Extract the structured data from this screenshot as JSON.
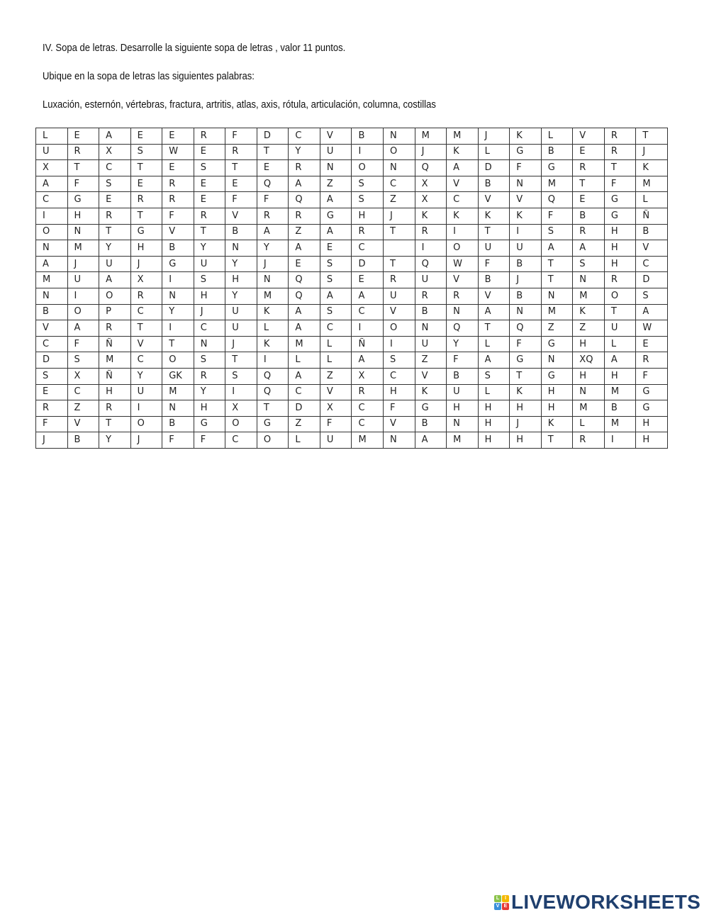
{
  "instructions": {
    "title": "IV. Sopa de letras. Desarrolle la siguiente sopa de letras , valor 11 puntos.",
    "subtitle": "Ubique en la sopa de letras las siguientes palabras:",
    "words": "Luxación, esternón, vértebras, fractura, artritis, atlas, axis, rótula, articulación,  columna, costillas"
  },
  "grid": [
    [
      "L",
      "E",
      "A",
      "E",
      "E",
      "R",
      "F",
      "D",
      "C",
      "V",
      "B",
      "N",
      "M",
      "M",
      "J",
      "K",
      "L",
      "V",
      "R",
      "T"
    ],
    [
      "U",
      "R",
      "X",
      "S",
      "W",
      "E",
      "R",
      "T",
      "Y",
      "U",
      "I",
      "O",
      "J",
      "K",
      "L",
      "G",
      "B",
      "E",
      "R",
      "J"
    ],
    [
      "X",
      "T",
      "C",
      "T",
      "E",
      "S",
      "T",
      "E",
      "R",
      "N",
      "O",
      "N",
      "Q",
      "A",
      "D",
      "F",
      "G",
      "R",
      "T",
      "K"
    ],
    [
      "A",
      "F",
      "S",
      "E",
      "R",
      "E",
      "E",
      "Q",
      "A",
      "Z",
      "S",
      "C",
      "X",
      "V",
      "B",
      "N",
      "M",
      "T",
      "F",
      "M"
    ],
    [
      "C",
      "G",
      "E",
      "R",
      "R",
      "E",
      "F",
      "F",
      "Q",
      "A",
      "S",
      "Z",
      "X",
      "C",
      "V",
      "V",
      "Q",
      "E",
      "G",
      "L"
    ],
    [
      "I",
      "H",
      "R",
      "T",
      "F",
      "R",
      "V",
      "R",
      "R",
      "G",
      "H",
      "J",
      "K",
      "K",
      "K",
      "K",
      "F",
      "B",
      "G",
      "Ñ"
    ],
    [
      "O",
      "N",
      "T",
      "G",
      "V",
      "T",
      "B",
      "A",
      "Z",
      "A",
      "R",
      "T",
      "R",
      "I",
      "T",
      "I",
      "S",
      "R",
      "H",
      "B"
    ],
    [
      "N",
      "M",
      "Y",
      "H",
      "B",
      "Y",
      "N",
      "Y",
      "A",
      "E",
      "C",
      "",
      "I",
      "O",
      "U",
      "U",
      "A",
      "A",
      "H",
      "V"
    ],
    [
      "A",
      "J",
      "U",
      "J",
      "G",
      "U",
      "Y",
      "J",
      "E",
      "S",
      "D",
      "T",
      "Q",
      "W",
      "F",
      "B",
      "T",
      "S",
      "H",
      "C"
    ],
    [
      "M",
      "U",
      "A",
      "X",
      "I",
      "S",
      "H",
      "N",
      "Q",
      "S",
      "E",
      "R",
      "U",
      "V",
      "B",
      "J",
      "T",
      "N",
      "R",
      "D"
    ],
    [
      "N",
      "I",
      "O",
      "R",
      "N",
      "H",
      "Y",
      "M",
      "Q",
      "A",
      "A",
      "U",
      "R",
      "R",
      "V",
      "B",
      "N",
      "M",
      "O",
      "S"
    ],
    [
      "B",
      "O",
      "P",
      "C",
      "Y",
      "J",
      "U",
      "K",
      "A",
      "S",
      "C",
      "V",
      "B",
      "N",
      "A",
      "N",
      "M",
      "K",
      "T",
      "A"
    ],
    [
      "V",
      "A",
      "R",
      "T",
      "I",
      "C",
      "U",
      "L",
      "A",
      "C",
      "I",
      "O",
      "N",
      "Q",
      "T",
      "Q",
      "Z",
      "Z",
      "U",
      "W"
    ],
    [
      "C",
      "F",
      "Ñ",
      "V",
      "T",
      "N",
      "J",
      "K",
      "M",
      "L",
      "Ñ",
      "I",
      "U",
      "Y",
      "L",
      "F",
      "G",
      "H",
      "L",
      "E"
    ],
    [
      "D",
      "S",
      "M",
      "C",
      "O",
      "S",
      "T",
      "I",
      "L",
      "L",
      "A",
      "S",
      "Z",
      "F",
      "A",
      "G",
      "N",
      "XQ",
      "A",
      "R"
    ],
    [
      "S",
      "X",
      "Ñ",
      "Y",
      "GK",
      "R",
      "S",
      "Q",
      "A",
      "Z",
      "X",
      "C",
      "V",
      "B",
      "S",
      "T",
      "G",
      "H",
      "H",
      "F"
    ],
    [
      "E",
      "C",
      "H",
      "U",
      "M",
      "Y",
      "I",
      "Q",
      "C",
      "V",
      "R",
      "H",
      "K",
      "U",
      "L",
      "K",
      "H",
      "N",
      "M",
      "G"
    ],
    [
      "R",
      "Z",
      "R",
      "I",
      "N",
      "H",
      "X",
      "T",
      "D",
      "X",
      "C",
      "F",
      "G",
      "H",
      "H",
      "H",
      "H",
      "M",
      "B",
      "G"
    ],
    [
      "F",
      "V",
      "T",
      "O",
      "B",
      "G",
      "O",
      "G",
      "Z",
      "F",
      "C",
      "V",
      "B",
      "N",
      "H",
      "J",
      "K",
      "L",
      "M",
      "H"
    ],
    [
      "J",
      "B",
      "Y",
      "J",
      "F",
      "F",
      "C",
      "O",
      "L",
      "U",
      "M",
      "N",
      "A",
      "M",
      "H",
      "H",
      "T",
      "R",
      "I",
      "H"
    ]
  ],
  "logo": {
    "text": "LIVEWORKSHEETS",
    "blocks": [
      "L",
      "I",
      "V",
      "E"
    ],
    "block_colors": [
      "#8bc34a",
      "#f5b800",
      "#3a8fd9",
      "#e53935"
    ],
    "brand_color": "#1f3f6e"
  }
}
